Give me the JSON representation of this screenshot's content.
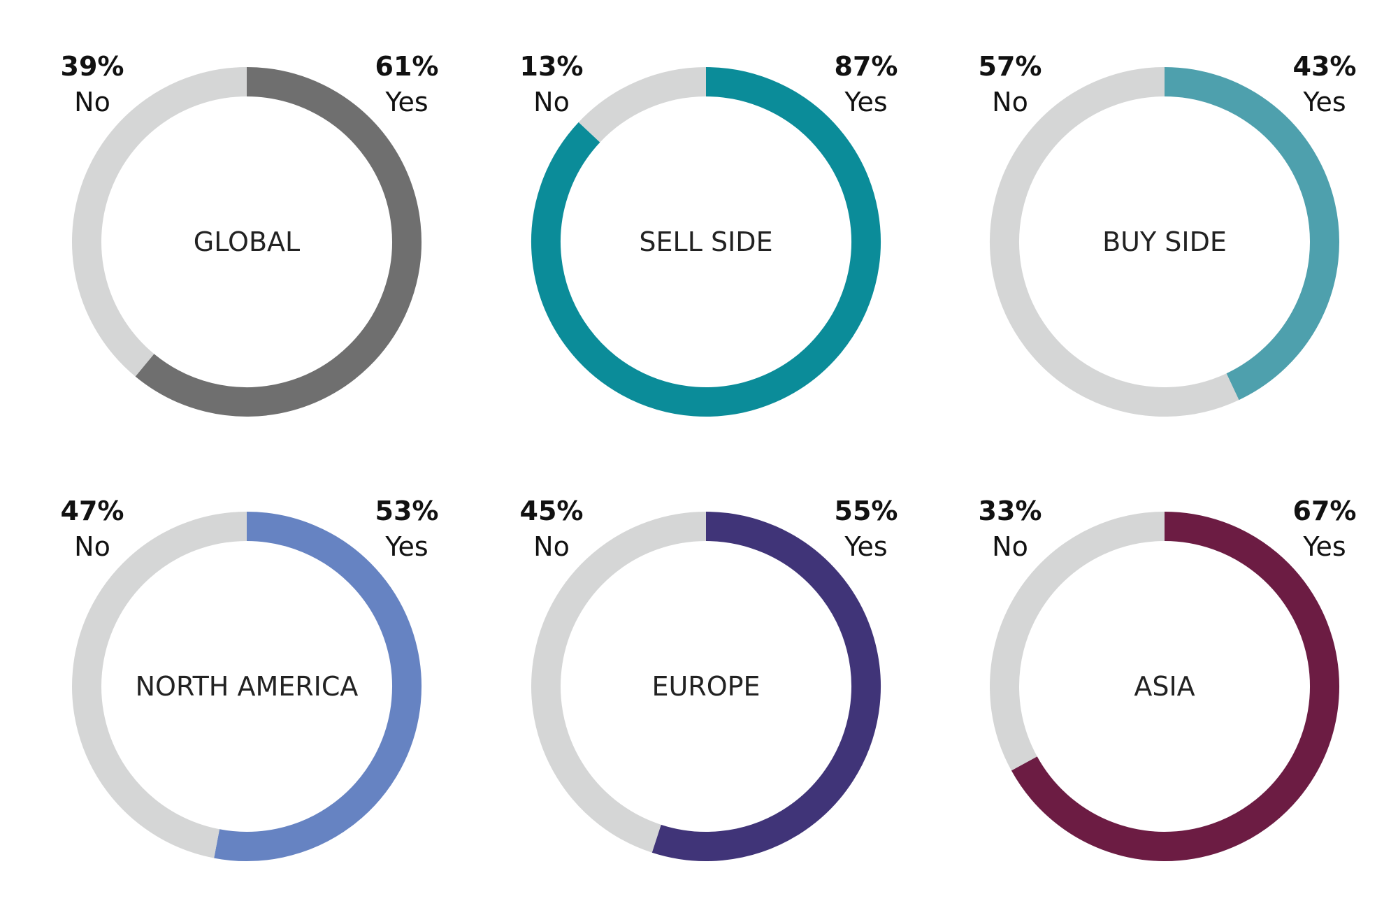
{
  "chart_data": [
    {
      "type": "pie",
      "title": "GLOBAL",
      "categories": [
        "Yes",
        "No"
      ],
      "values": [
        61,
        39
      ],
      "value_labels": [
        "61%",
        "39%"
      ],
      "colors": {
        "Yes": "#6f6f6f",
        "No": "#d5d6d6"
      }
    },
    {
      "type": "pie",
      "title": "SELL SIDE",
      "categories": [
        "Yes",
        "No"
      ],
      "values": [
        87,
        13
      ],
      "value_labels": [
        "87%",
        "13%"
      ],
      "colors": {
        "Yes": "#0b8c99",
        "No": "#d5d6d6"
      }
    },
    {
      "type": "pie",
      "title": "BUY SIDE",
      "categories": [
        "Yes",
        "No"
      ],
      "values": [
        43,
        57
      ],
      "value_labels": [
        "43%",
        "57%"
      ],
      "colors": {
        "Yes": "#4ea0ad",
        "No": "#d5d6d6"
      }
    },
    {
      "type": "pie",
      "title": "NORTH AMERICA",
      "categories": [
        "Yes",
        "No"
      ],
      "values": [
        53,
        47
      ],
      "value_labels": [
        "53%",
        "47%"
      ],
      "colors": {
        "Yes": "#6683c2",
        "No": "#d5d6d6"
      }
    },
    {
      "type": "pie",
      "title": "EUROPE",
      "categories": [
        "Yes",
        "No"
      ],
      "values": [
        55,
        45
      ],
      "value_labels": [
        "55%",
        "45%"
      ],
      "colors": {
        "Yes": "#403478",
        "No": "#d5d6d6"
      }
    },
    {
      "type": "pie",
      "title": "ASIA",
      "categories": [
        "Yes",
        "No"
      ],
      "values": [
        67,
        33
      ],
      "value_labels": [
        "67%",
        "33%"
      ],
      "colors": {
        "Yes": "#6c1c43",
        "No": "#d5d6d6"
      }
    }
  ]
}
